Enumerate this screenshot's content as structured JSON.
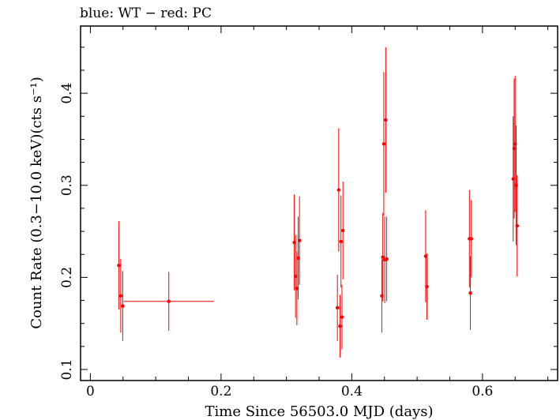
{
  "chart_data": {
    "type": "scatter",
    "title": "blue: WT − red: PC",
    "xlabel": "Time Since 56503.0 MJD (days)",
    "ylabel": "Count Rate (0.3−10.0 keV)(cts s⁻¹)",
    "xlim": [
      -0.015,
      0.715
    ],
    "ylim": [
      0.088,
      0.473
    ],
    "xticks": [
      0,
      0.2,
      0.4,
      0.6
    ],
    "xtick_labels": [
      "0",
      "0.2",
      "0.4",
      "0.6"
    ],
    "yticks": [
      0.1,
      0.2,
      0.3,
      0.4
    ],
    "ytick_labels": [
      "0.1",
      "0.2",
      "0.3",
      "0.4"
    ],
    "grid": false,
    "series": [
      {
        "name": "PC",
        "color": "#ff0000",
        "points": [
          {
            "x": 0.0435,
            "y": 0.213,
            "xerr": 0.0008,
            "yerr": 0.048
          },
          {
            "x": 0.0465,
            "y": 0.18,
            "xerr": 0.0008,
            "yerr": 0.04
          },
          {
            "x": 0.0495,
            "y": 0.169,
            "xerr": 0.0008,
            "yerr": 0.038
          },
          {
            "x": 0.12,
            "y": 0.174,
            "xerr": 0.069,
            "yerr": 0.032
          },
          {
            "x": 0.312,
            "y": 0.238,
            "xerr": 0.0008,
            "yerr": 0.052
          },
          {
            "x": 0.314,
            "y": 0.201,
            "xerr": 0.0008,
            "yerr": 0.045
          },
          {
            "x": 0.316,
            "y": 0.188,
            "xerr": 0.0008,
            "yerr": 0.04
          },
          {
            "x": 0.318,
            "y": 0.221,
            "xerr": 0.0008,
            "yerr": 0.045
          },
          {
            "x": 0.32,
            "y": 0.24,
            "xerr": 0.0008,
            "yerr": 0.048
          },
          {
            "x": 0.378,
            "y": 0.167,
            "xerr": 0.0008,
            "yerr": 0.036
          },
          {
            "x": 0.38,
            "y": 0.295,
            "xerr": 0.0008,
            "yerr": 0.067
          },
          {
            "x": 0.382,
            "y": 0.147,
            "xerr": 0.0008,
            "yerr": 0.034
          },
          {
            "x": 0.3835,
            "y": 0.239,
            "xerr": 0.0008,
            "yerr": 0.05
          },
          {
            "x": 0.385,
            "y": 0.157,
            "xerr": 0.0008,
            "yerr": 0.035
          },
          {
            "x": 0.3865,
            "y": 0.251,
            "xerr": 0.0008,
            "yerr": 0.053
          },
          {
            "x": 0.446,
            "y": 0.18,
            "xerr": 0.0008,
            "yerr": 0.04
          },
          {
            "x": 0.4475,
            "y": 0.222,
            "xerr": 0.0008,
            "yerr": 0.048
          },
          {
            "x": 0.449,
            "y": 0.345,
            "xerr": 0.0008,
            "yerr": 0.078
          },
          {
            "x": 0.4505,
            "y": 0.219,
            "xerr": 0.0008,
            "yerr": 0.047
          },
          {
            "x": 0.452,
            "y": 0.371,
            "xerr": 0.0008,
            "yerr": 0.079
          },
          {
            "x": 0.4535,
            "y": 0.22,
            "xerr": 0.0008,
            "yerr": 0.046
          },
          {
            "x": 0.513,
            "y": 0.223,
            "xerr": 0.0008,
            "yerr": 0.05
          },
          {
            "x": 0.515,
            "y": 0.19,
            "xerr": 0.0008,
            "yerr": 0.036
          },
          {
            "x": 0.58,
            "y": 0.242,
            "xerr": 0.0008,
            "yerr": 0.053
          },
          {
            "x": 0.5815,
            "y": 0.183,
            "xerr": 0.0008,
            "yerr": 0.04
          },
          {
            "x": 0.583,
            "y": 0.242,
            "xerr": 0.0008,
            "yerr": 0.042
          },
          {
            "x": 0.647,
            "y": 0.307,
            "xerr": 0.0008,
            "yerr": 0.068
          },
          {
            "x": 0.6485,
            "y": 0.34,
            "xerr": 0.0008,
            "yerr": 0.076
          },
          {
            "x": 0.65,
            "y": 0.345,
            "xerr": 0.0008,
            "yerr": 0.074
          },
          {
            "x": 0.6515,
            "y": 0.3,
            "xerr": 0.0008,
            "yerr": 0.065
          },
          {
            "x": 0.653,
            "y": 0.256,
            "xerr": 0.0008,
            "yerr": 0.055
          }
        ]
      }
    ]
  }
}
